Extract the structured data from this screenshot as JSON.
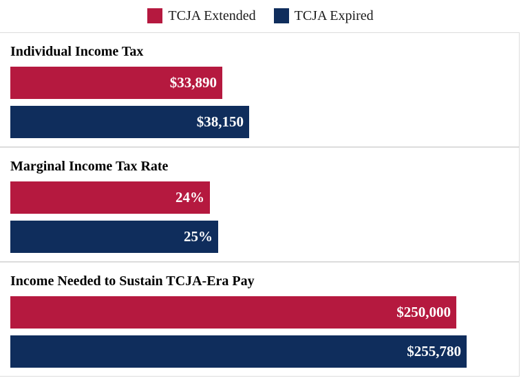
{
  "legend": [
    {
      "label": "TCJA Extended",
      "color": "#B5193F"
    },
    {
      "label": "TCJA Expired",
      "color": "#0F2D5C"
    }
  ],
  "chart_data": {
    "type": "bar",
    "orientation": "horizontal",
    "legend_position": "top",
    "grid": false,
    "panels": [
      {
        "title": "Individual Income Tax",
        "series": [
          {
            "name": "TCJA Extended",
            "value": 33890,
            "label": "$33,890"
          },
          {
            "name": "TCJA Expired",
            "value": 38150,
            "label": "$38,150"
          }
        ]
      },
      {
        "title": "Marginal Income Tax Rate",
        "series": [
          {
            "name": "TCJA Extended",
            "value": 24,
            "label": "24%"
          },
          {
            "name": "TCJA Expired",
            "value": 25,
            "label": "25%"
          }
        ]
      },
      {
        "title": "Income Needed to Sustain TCJA-Era Pay",
        "series": [
          {
            "name": "TCJA Extended",
            "value": 250000,
            "label": "$250,000"
          },
          {
            "name": "TCJA Expired",
            "value": 255780,
            "label": "$255,780"
          }
        ]
      }
    ]
  }
}
